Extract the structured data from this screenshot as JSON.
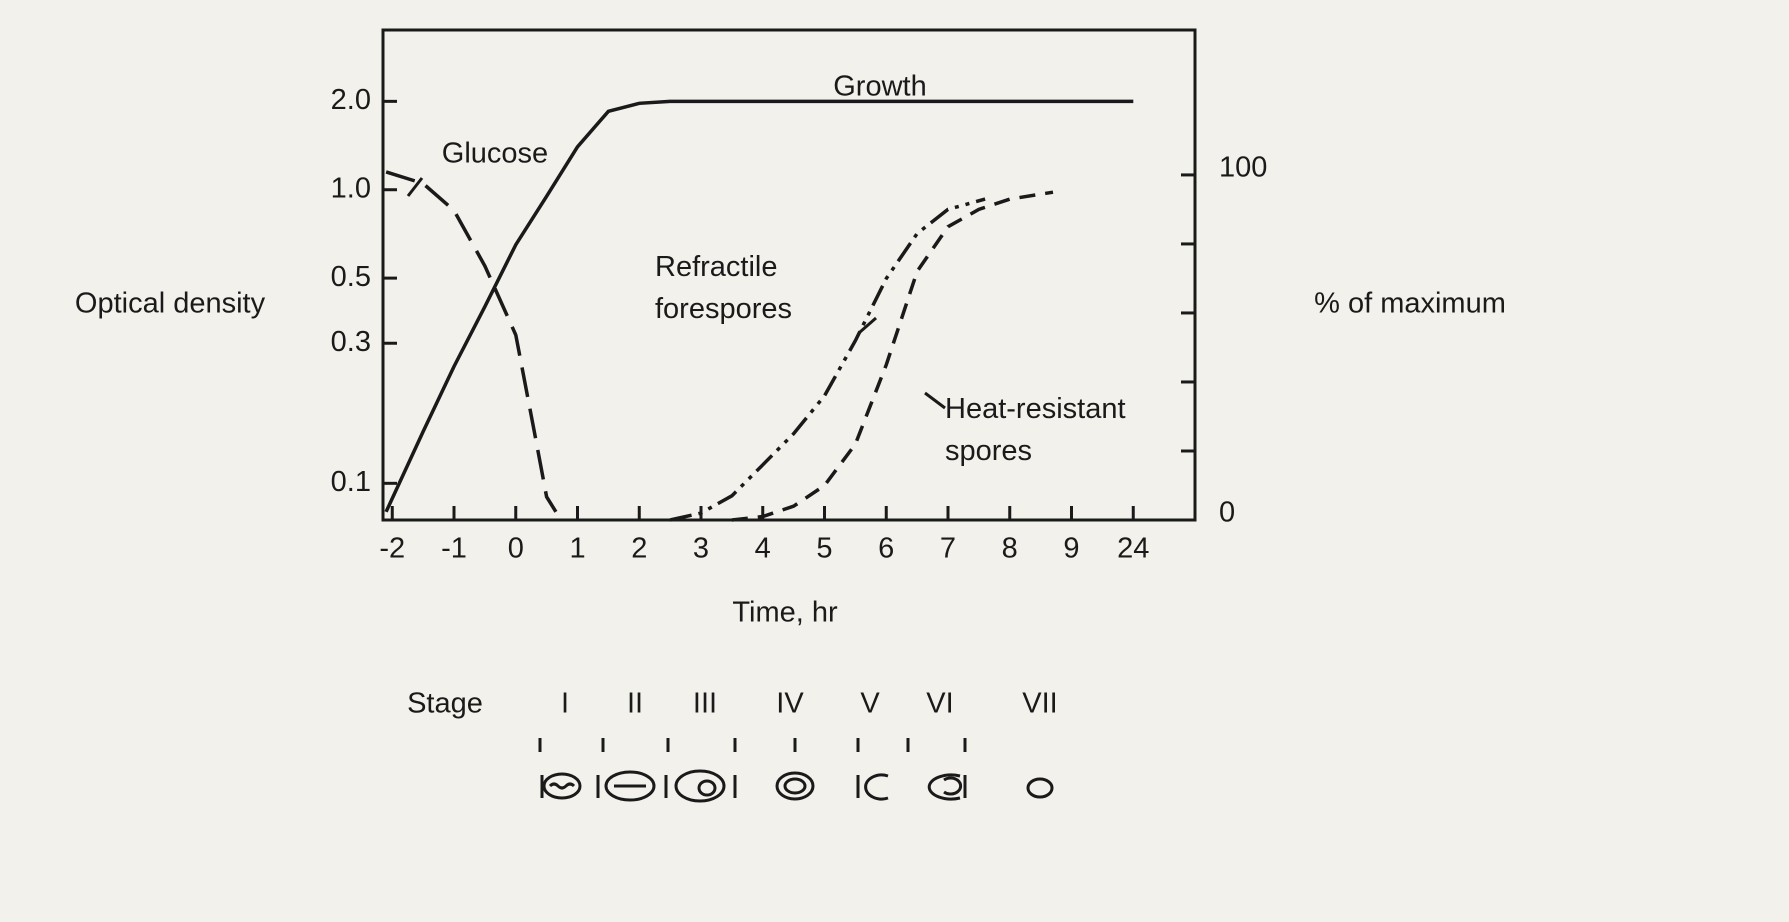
{
  "chart_data": {
    "type": "line",
    "y_label": "Optical density",
    "y2_label": "% of maximum",
    "x_label": "Time, hr",
    "xlim": [
      -2.15,
      25
    ],
    "x_break": [
      9.5,
      23.5
    ],
    "xticks": [
      -2,
      -1,
      0,
      1,
      2,
      3,
      4,
      5,
      6,
      7,
      8,
      9,
      24
    ],
    "ylim": [
      0.075,
      3.5
    ],
    "y_scale": "log",
    "yticks": [
      {
        "value": 0.1,
        "label": "0.1"
      },
      {
        "value": 0.3,
        "label": "0.3"
      },
      {
        "value": 0.5,
        "label": "0.5"
      },
      {
        "value": 1.0,
        "label": "1.0"
      },
      {
        "value": 2.0,
        "label": "2.0"
      }
    ],
    "y2lim": [
      0,
      142
    ],
    "y2ticks": [
      0,
      100
    ],
    "y2minor_ticks": [
      20,
      40,
      60,
      80
    ],
    "color": "#1a1a1a",
    "series": [
      {
        "name": "Growth",
        "axis": "y",
        "dash": "solid",
        "x": [
          -2.1,
          -1.5,
          -1,
          -0.5,
          0,
          0.5,
          1,
          1.5,
          2,
          2.5,
          24
        ],
        "values": [
          0.08,
          0.15,
          0.25,
          0.4,
          0.65,
          0.95,
          1.4,
          1.85,
          1.97,
          2.0,
          2.0
        ]
      },
      {
        "name": "Glucose",
        "axis": "y",
        "dash": "dashed",
        "x": [
          -2.1,
          -1.5,
          -1,
          -0.5,
          0,
          0.3,
          0.5,
          0.65
        ],
        "values": [
          1.15,
          1.05,
          0.85,
          0.55,
          0.32,
          0.15,
          0.09,
          0.08
        ]
      },
      {
        "name": "Refractile\nforespores",
        "axis": "y2",
        "dash": "dash-dot-dot",
        "x": [
          2.5,
          3,
          3.5,
          4,
          4.5,
          5,
          5.5,
          6,
          6.5,
          7,
          7.6
        ],
        "values": [
          0,
          2,
          7,
          16,
          25,
          36,
          52,
          70,
          83,
          90,
          93
        ]
      },
      {
        "name": "Heat-resistant\nspores",
        "axis": "y2",
        "dash": "short-dash",
        "x": [
          3.5,
          4,
          4.5,
          5,
          5.5,
          6,
          6.5,
          7,
          7.5,
          8,
          8.7
        ],
        "values": [
          0,
          1,
          4,
          10,
          22,
          45,
          72,
          85,
          90,
          93,
          95
        ]
      }
    ]
  },
  "stages": {
    "label": "Stage",
    "items": [
      "I",
      "II",
      "III",
      "IV",
      "V",
      "VI",
      "VII"
    ]
  }
}
